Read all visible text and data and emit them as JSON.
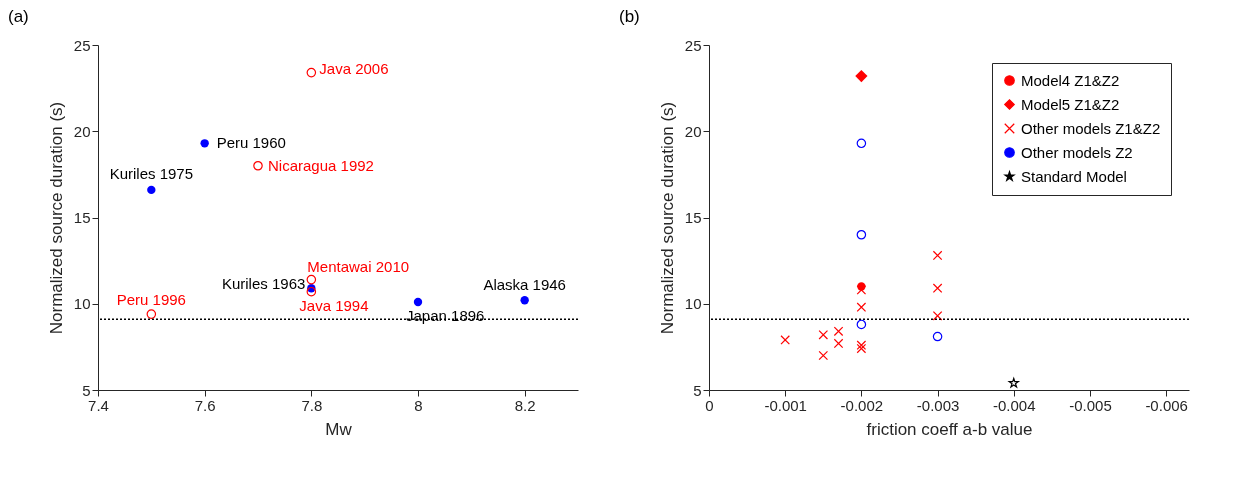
{
  "chart_data": [
    {
      "type": "scatter",
      "title": "(a)",
      "xlabel": "Mw",
      "ylabel": "Normalized source duration (s)",
      "xlim": [
        7.4,
        8.3
      ],
      "xticks": [
        7.4,
        7.6,
        7.8,
        8,
        8.2
      ],
      "ylim": [
        5,
        25
      ],
      "yticks": [
        5,
        10,
        15,
        20,
        25
      ],
      "grid": false,
      "ref_lines": [
        {
          "axis": "y",
          "value": 9.1,
          "line_style": "dotted",
          "color": "#000000"
        }
      ],
      "series": [
        {
          "color": "#0000ff",
          "marker": "circle",
          "x": [
            7.5,
            7.6,
            7.8,
            8.0,
            8.2
          ],
          "values": [
            16.6,
            19.3,
            10.9,
            10.1,
            10.2
          ],
          "value_labels": [
            "Kuriles 1975",
            "Peru 1960",
            "Kuriles 1963",
            "Japan 1896",
            "Alaska 1946"
          ]
        },
        {
          "color": "#ff0000",
          "marker": "circle",
          "x": [
            7.8,
            7.7,
            7.8,
            7.8,
            7.5
          ],
          "values": [
            23.4,
            18.0,
            11.4,
            10.7,
            9.4
          ],
          "value_labels": [
            "Java 2006",
            "Nicaragua 1992",
            "Mentawai 2010",
            "Java 1994",
            "Peru 1996"
          ]
        }
      ]
    },
    {
      "type": "scatter",
      "title": "(b)",
      "xlabel": "friction coeff a-b value",
      "ylabel": "Normalized source duration (s)",
      "xlim": [
        0,
        -0.0063
      ],
      "xticks": [
        0,
        -0.001,
        -0.002,
        -0.003,
        -0.004,
        -0.005,
        -0.006
      ],
      "ylim": [
        5,
        25
      ],
      "yticks": [
        5,
        10,
        15,
        20,
        25
      ],
      "legend": "top right",
      "grid": false,
      "ref_lines": [
        {
          "axis": "y",
          "value": 9.1,
          "line_style": "dotted",
          "color": "#000000"
        }
      ],
      "series": [
        {
          "name": "Model4 Z1&Z2",
          "color": "#ff0000",
          "marker": "circle",
          "x": [
            -0.002
          ],
          "values": [
            11.0
          ]
        },
        {
          "name": "Model5 Z1&Z2",
          "color": "#ff0000",
          "marker": "diamond",
          "x": [
            -0.002
          ],
          "values": [
            23.2
          ]
        },
        {
          "name": "Other models Z1&Z2",
          "color": "#ff0000",
          "marker": "cross",
          "x": [
            -0.001,
            -0.0015,
            -0.0015,
            -0.0017,
            -0.0017,
            -0.002,
            -0.002,
            -0.002,
            -0.002,
            -0.003,
            -0.003,
            -0.003
          ],
          "values": [
            7.9,
            8.2,
            7.0,
            8.4,
            7.7,
            10.8,
            9.8,
            7.6,
            7.4,
            12.8,
            10.9,
            9.3
          ]
        },
        {
          "name": "Other models Z2",
          "color": "#0000ff",
          "marker": "circle",
          "x": [
            -0.002,
            -0.002,
            -0.002,
            -0.003
          ],
          "values": [
            19.3,
            14.0,
            8.8,
            8.1
          ]
        },
        {
          "name": "Standard Model",
          "color": "#000000",
          "marker": "star",
          "x": [
            -0.004
          ],
          "values": [
            5.4
          ]
        }
      ]
    }
  ]
}
